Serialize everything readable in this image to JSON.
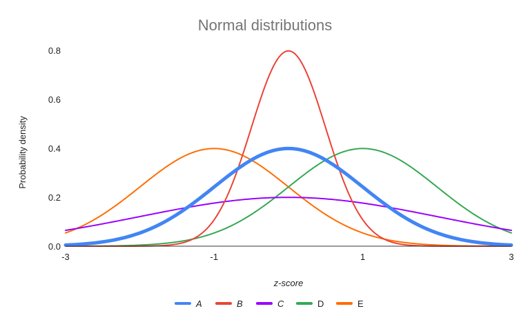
{
  "chart_data": {
    "type": "line",
    "title": "Normal distributions",
    "xlabel": "z-score",
    "ylabel": "Probability density",
    "xlim": [
      -3,
      3
    ],
    "ylim": [
      0,
      0.8
    ],
    "x_ticks": [
      -3,
      -1,
      1,
      3
    ],
    "x_tick_labels": [
      "-3",
      "-1",
      "1",
      "3"
    ],
    "y_ticks": [
      0,
      0.2,
      0.4,
      0.6,
      0.8
    ],
    "y_tick_labels": [
      "0.0",
      "0.2",
      "0.4",
      "0.6",
      "0.8"
    ],
    "grid": false,
    "legend_position": "bottom",
    "series": [
      {
        "name": "A",
        "color": "#4285f4",
        "mean": 0,
        "sd": 1,
        "peak": 0.399
      },
      {
        "name": "B",
        "color": "#ea4335",
        "mean": 0,
        "sd": 0.5,
        "peak": 0.798
      },
      {
        "name": "C",
        "color": "#9900ff",
        "mean": 0,
        "sd": 2,
        "peak": 0.199
      },
      {
        "name": "D",
        "color": "#34a853",
        "mean": 1,
        "sd": 1,
        "peak": 0.399
      },
      {
        "name": "E",
        "color": "#ff6d01",
        "mean": -1,
        "sd": 1,
        "peak": 0.399
      }
    ]
  }
}
